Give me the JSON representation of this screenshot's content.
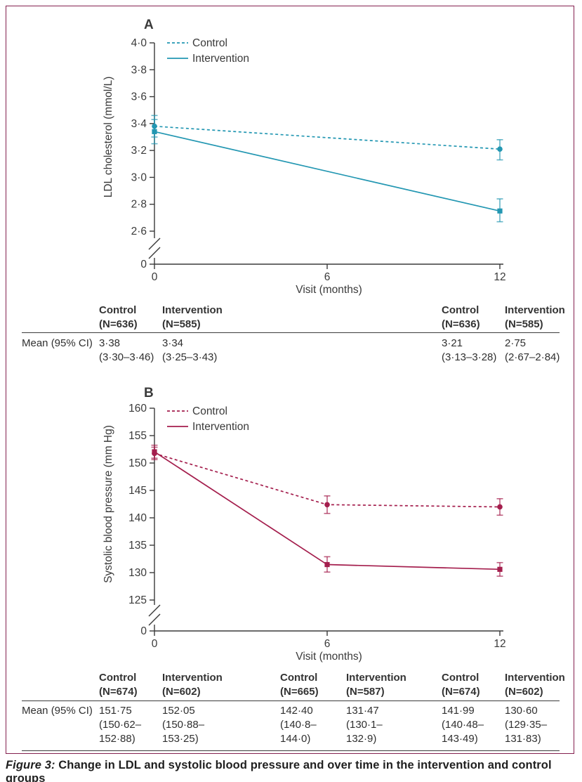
{
  "figure": {
    "caption_prefix": "Figure 3:",
    "caption_text": " Change in LDL and systolic blood pressure and over time in the intervention and control groups",
    "border_color": "#84204f"
  },
  "chart_data": [
    {
      "panel_label": "A",
      "type": "line",
      "xlabel": "Visit (months)",
      "ylabel": "LDL cholesterol (mmol/L)",
      "color": "#2397b2",
      "ylim": [
        2.6,
        4.0
      ],
      "axis_break": true,
      "y_break_label": "0",
      "x_ticks": [
        {
          "v": 0,
          "label": "0"
        },
        {
          "v": 6,
          "label": "6"
        },
        {
          "v": 12,
          "label": "12"
        }
      ],
      "y_ticks": [
        {
          "v": 4.0,
          "label": "4·0"
        },
        {
          "v": 3.8,
          "label": "3·8"
        },
        {
          "v": 3.6,
          "label": "3·6"
        },
        {
          "v": 3.4,
          "label": "3·4"
        },
        {
          "v": 3.2,
          "label": "3·2"
        },
        {
          "v": 3.0,
          "label": "3·0"
        },
        {
          "v": 2.8,
          "label": "2·8"
        },
        {
          "v": 2.6,
          "label": "2·6"
        }
      ],
      "legend": [
        {
          "label": "Control",
          "style": "dashed"
        },
        {
          "label": "Intervention",
          "style": "solid"
        }
      ],
      "series": [
        {
          "name": "Control",
          "style": "dashed",
          "marker": "circle",
          "x": [
            0,
            12
          ],
          "means": [
            3.38,
            3.21
          ],
          "ci": [
            [
              3.3,
              3.46
            ],
            [
              3.13,
              3.28
            ]
          ]
        },
        {
          "name": "Intervention",
          "style": "solid",
          "marker": "square",
          "x": [
            0,
            12
          ],
          "means": [
            3.34,
            2.75
          ],
          "ci": [
            [
              3.25,
              3.43
            ],
            [
              2.67,
              2.84
            ]
          ]
        }
      ]
    },
    {
      "panel_label": "B",
      "type": "line",
      "xlabel": "Visit (months)",
      "ylabel": "Systolic blood pressure (mm Hg)",
      "color": "#a41e4d",
      "ylim": [
        125,
        160
      ],
      "axis_break": true,
      "y_break_label": "0",
      "x_ticks": [
        {
          "v": 0,
          "label": "0"
        },
        {
          "v": 6,
          "label": "6"
        },
        {
          "v": 12,
          "label": "12"
        }
      ],
      "y_ticks": [
        {
          "v": 160,
          "label": "160"
        },
        {
          "v": 155,
          "label": "155"
        },
        {
          "v": 150,
          "label": "150"
        },
        {
          "v": 145,
          "label": "145"
        },
        {
          "v": 140,
          "label": "140"
        },
        {
          "v": 135,
          "label": "135"
        },
        {
          "v": 130,
          "label": "130"
        },
        {
          "v": 125,
          "label": "125"
        }
      ],
      "legend": [
        {
          "label": "Control",
          "style": "dashed"
        },
        {
          "label": "Intervention",
          "style": "solid"
        }
      ],
      "series": [
        {
          "name": "Control",
          "style": "dashed",
          "marker": "circle",
          "x": [
            0,
            6,
            12
          ],
          "means": [
            151.75,
            142.4,
            141.99
          ],
          "ci": [
            [
              150.62,
              152.88
            ],
            [
              140.8,
              144.0
            ],
            [
              140.48,
              143.49
            ]
          ]
        },
        {
          "name": "Intervention",
          "style": "solid",
          "marker": "square",
          "x": [
            0,
            6,
            12
          ],
          "means": [
            152.05,
            131.47,
            130.6
          ],
          "ci": [
            [
              150.88,
              153.25
            ],
            [
              130.1,
              132.9
            ],
            [
              129.35,
              131.83
            ]
          ]
        }
      ]
    }
  ],
  "tables": [
    {
      "row_label": "Mean (95% CI)",
      "groups": [
        {
          "col": "c1",
          "header_lines": [
            "Control",
            "(N=636)"
          ],
          "mean": "3·38",
          "ci_lines": [
            "(3·30–3·46)"
          ]
        },
        {
          "col": "i1",
          "header_lines": [
            "Intervention",
            "(N=585)"
          ],
          "mean": "3·34",
          "ci_lines": [
            "(3·25–3·43)"
          ]
        },
        {
          "col": "c3",
          "header_lines": [
            "Control",
            "(N=636)"
          ],
          "mean": "3·21",
          "ci_lines": [
            "(3·13–3·28)"
          ]
        },
        {
          "col": "i3",
          "header_lines": [
            "Intervention",
            "(N=585)"
          ],
          "mean": "2·75",
          "ci_lines": [
            "(2·67–2·84)"
          ]
        }
      ]
    },
    {
      "row_label": "Mean (95% CI)",
      "groups": [
        {
          "col": "c1",
          "header_lines": [
            "Control",
            "(N=674)"
          ],
          "mean": "151·75",
          "ci_lines": [
            "(150·62–",
            "152·88)"
          ]
        },
        {
          "col": "i1",
          "header_lines": [
            "Intervention",
            "(N=602)"
          ],
          "mean": "152·05",
          "ci_lines": [
            "(150·88–",
            "153·25)"
          ]
        },
        {
          "col": "c2",
          "header_lines": [
            "Control",
            "(N=665)"
          ],
          "mean": "142·40",
          "ci_lines": [
            "(140·8–",
            "144·0)"
          ]
        },
        {
          "col": "i2",
          "header_lines": [
            "Intervention",
            "(N=587)"
          ],
          "mean": "131·47",
          "ci_lines": [
            "(130·1–",
            "132·9)"
          ]
        },
        {
          "col": "c3",
          "header_lines": [
            "Control",
            "(N=674)"
          ],
          "mean": "141·99",
          "ci_lines": [
            "(140·48–",
            "143·49)"
          ]
        },
        {
          "col": "i3",
          "header_lines": [
            "Intervention",
            "(N=602)"
          ],
          "mean": "130·60",
          "ci_lines": [
            "(129·35–",
            "131·83)"
          ]
        }
      ]
    }
  ]
}
